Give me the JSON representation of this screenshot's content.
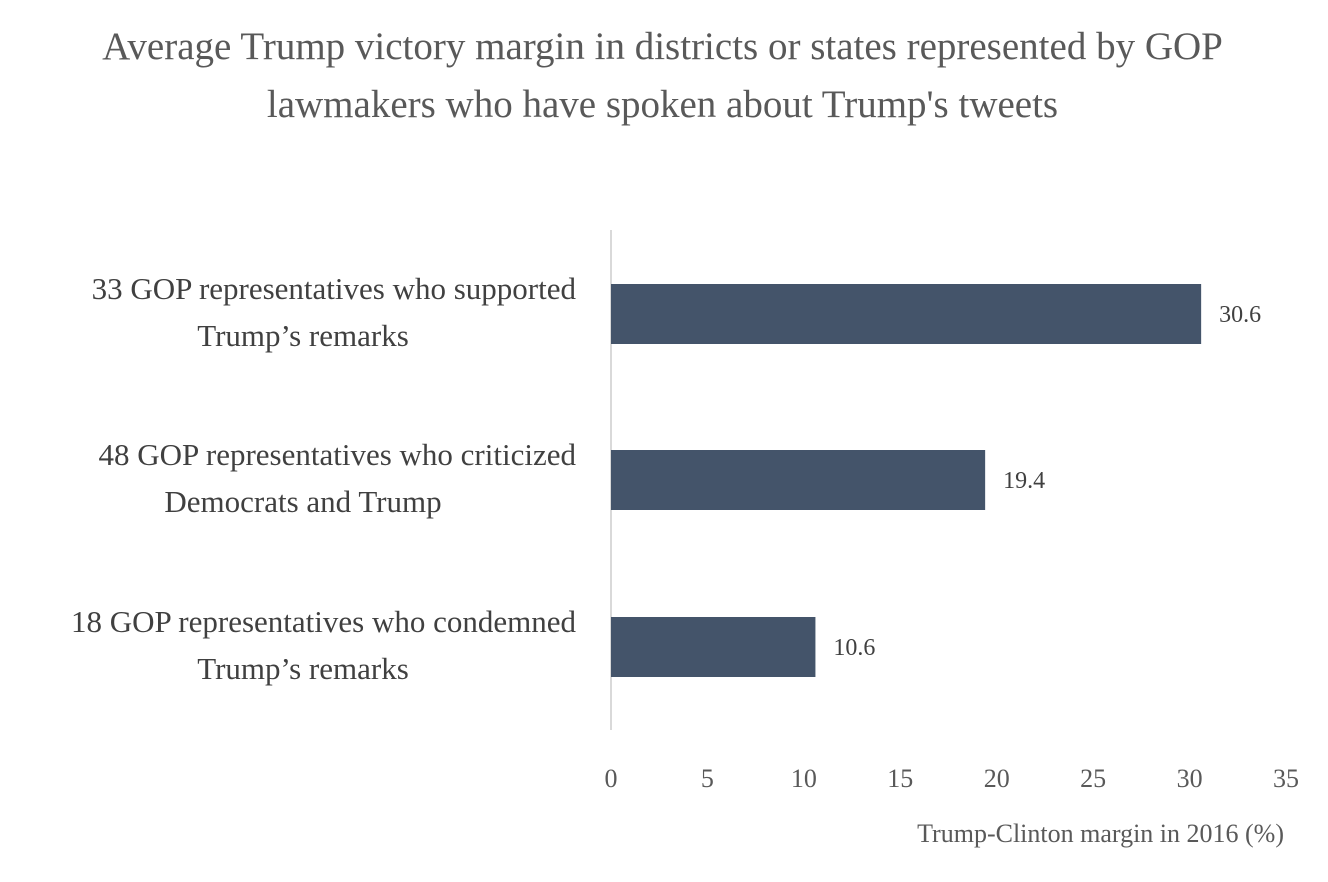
{
  "chart_data": {
    "type": "bar",
    "orientation": "horizontal",
    "title": "Average Trump victory margin in districts or states represented by GOP lawmakers who have spoken about Trump's tweets",
    "categories": [
      [
        "33 GOP representatives who supported",
        "Trump’s remarks"
      ],
      [
        "48 GOP representatives who criticized",
        "Democrats and Trump"
      ],
      [
        "18 GOP representatives who condemned",
        "Trump’s remarks"
      ]
    ],
    "values": [
      30.6,
      19.4,
      10.6
    ],
    "value_labels": [
      "30.6",
      "19.4",
      "10.6"
    ],
    "xlabel": "Trump-Clinton margin in 2016 (%)",
    "ylabel": "",
    "xlim": [
      0,
      35
    ],
    "ticks": [
      0,
      5,
      10,
      15,
      20,
      25,
      30,
      35
    ],
    "tick_labels": [
      "0",
      "5",
      "10",
      "15",
      "20",
      "25",
      "30",
      "35"
    ],
    "grid": false,
    "legend": "none",
    "colors": {
      "bar": "#44546a",
      "axis": "#d9d9d9",
      "text": "#595959",
      "label_text": "#404040"
    }
  }
}
